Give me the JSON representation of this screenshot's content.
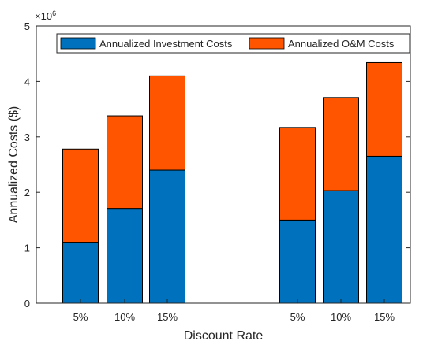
{
  "chart_data": {
    "type": "bar",
    "stacked": true,
    "xlabel": "Discount Rate",
    "ylabel": "Annualized Costs ($)",
    "y_exponent_label": "×10",
    "y_exponent_power": "6",
    "ylim": [
      0,
      5000000
    ],
    "yticks": [
      0,
      1000000,
      2000000,
      3000000,
      4000000,
      5000000
    ],
    "ytick_labels": [
      "0",
      "1",
      "2",
      "3",
      "4",
      "5"
    ],
    "grid": false,
    "legend_position": "top",
    "groups": [
      {
        "categories": [
          "5%",
          "10%",
          "15%"
        ],
        "investment": [
          1100000,
          1710000,
          2400000
        ],
        "om": [
          1680000,
          1670000,
          1700000
        ]
      },
      {
        "categories": [
          "5%",
          "10%",
          "15%"
        ],
        "investment": [
          1500000,
          2030000,
          2650000
        ],
        "om": [
          1670000,
          1680000,
          1690000
        ]
      }
    ],
    "series": [
      {
        "name": "Annualized Investment Costs",
        "color": "#0072BD"
      },
      {
        "name": "Annualized O&M Costs",
        "color": "#FF5500"
      }
    ]
  }
}
